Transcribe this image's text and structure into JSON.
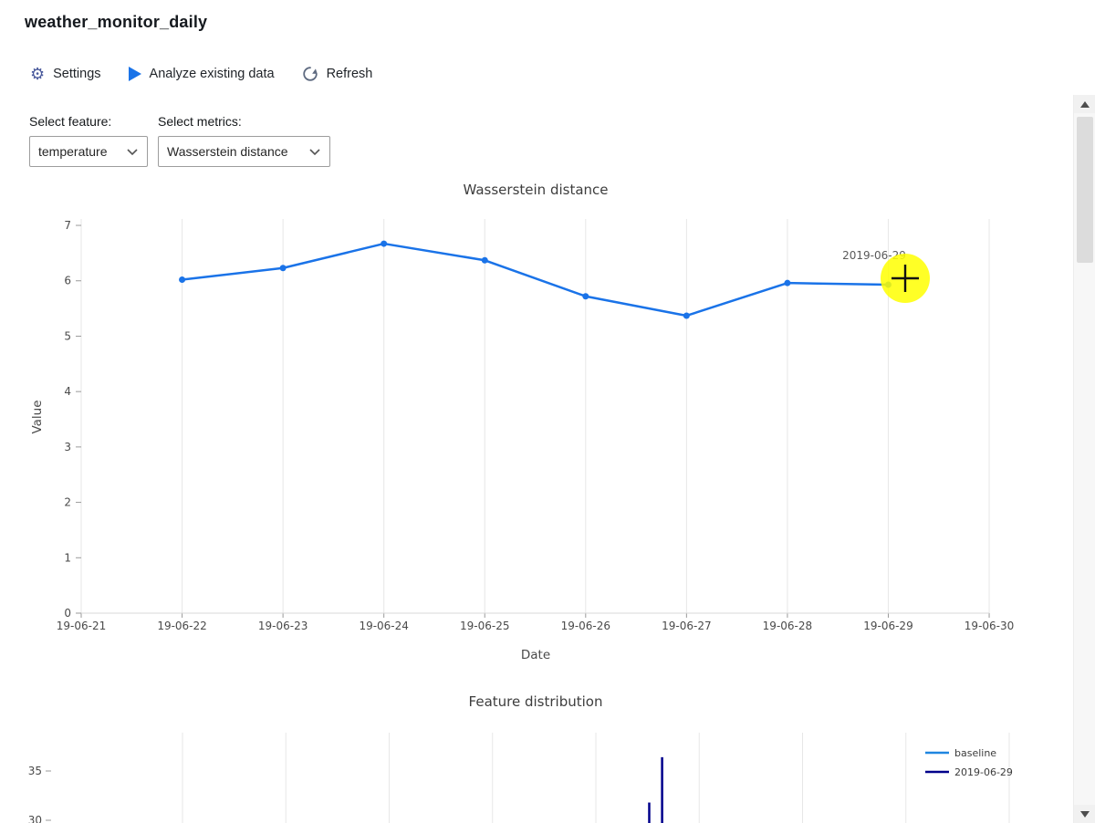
{
  "app": {
    "title": "weather_monitor_daily"
  },
  "toolbar": {
    "settings_label": "Settings",
    "analyze_label": "Analyze existing data",
    "refresh_label": "Refresh"
  },
  "controls": {
    "feature_label": "Select feature:",
    "feature_value": "temperature",
    "metrics_label": "Select metrics:",
    "metrics_value": "Wasserstein distance"
  },
  "cursor": {
    "highlight_color": "#ffff00"
  },
  "chart_data": [
    {
      "type": "line",
      "title": "Wasserstein distance",
      "xlabel": "Date",
      "ylabel": "Value",
      "x_ticks": [
        "19-06-21",
        "19-06-22",
        "19-06-23",
        "19-06-24",
        "19-06-25",
        "19-06-26",
        "19-06-27",
        "19-06-28",
        "19-06-29",
        "19-06-30"
      ],
      "y_ticks": [
        0,
        1,
        2,
        3,
        4,
        5,
        6,
        7
      ],
      "ylim": [
        0,
        7
      ],
      "grid": "vertical",
      "series": [
        {
          "name": "wasserstein",
          "color": "#1a73e8",
          "x": [
            "19-06-22",
            "19-06-23",
            "19-06-24",
            "19-06-25",
            "19-06-26",
            "19-06-27",
            "19-06-28",
            "19-06-29"
          ],
          "values": [
            6.02,
            6.23,
            6.67,
            6.37,
            5.72,
            5.37,
            5.96,
            5.93
          ]
        }
      ],
      "tooltip": {
        "text": "2019-06-29",
        "x": "19-06-29"
      }
    },
    {
      "type": "histogram",
      "title": "Feature distribution",
      "partial": true,
      "visible_y_ticks": [
        35,
        30
      ],
      "legend": [
        {
          "label": "baseline",
          "color": "#1f86e0"
        },
        {
          "label": "2019-06-29",
          "color": "#00008b"
        }
      ],
      "visible_spikes": [
        {
          "series": "2019-06-29",
          "value": 36.4,
          "x_fraction": 0.617
        },
        {
          "series": "2019-06-29",
          "value": 31.8,
          "x_fraction": 0.605
        }
      ]
    }
  ]
}
